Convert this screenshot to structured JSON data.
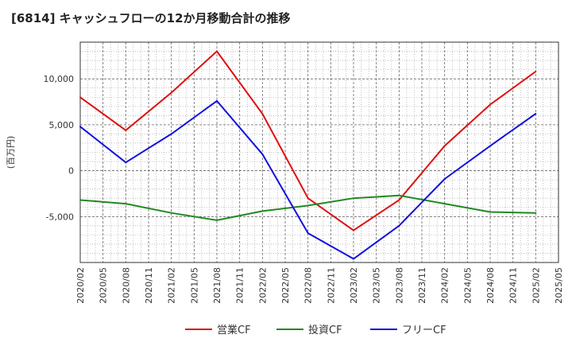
{
  "chart_data": {
    "type": "line",
    "title": "[6814]  キャッシュフローの12か月移動合計の推移",
    "xlabel": "",
    "ylabel": "(百万円)",
    "ylim": [
      -10000,
      14000
    ],
    "yticks": [
      10000,
      5000,
      0,
      -5000
    ],
    "ytick_labels": [
      "10,000",
      "5,000",
      "0",
      "-5,000"
    ],
    "xtick_labels": [
      "2020/02",
      "2020/05",
      "2020/08",
      "2020/11",
      "2021/02",
      "2021/05",
      "2021/08",
      "2021/11",
      "2022/02",
      "2022/05",
      "2022/08",
      "2022/11",
      "2023/02",
      "2023/05",
      "2023/08",
      "2023/11",
      "2024/02",
      "2024/05",
      "2024/08",
      "2024/11",
      "2025/02",
      "2025/05"
    ],
    "grid": true,
    "legend_position": "bottom",
    "series": [
      {
        "name": "営業CF",
        "color": "#dd1111",
        "x": [
          "2020/02",
          "2020/08",
          "2021/02",
          "2021/08",
          "2022/02",
          "2022/08",
          "2023/02",
          "2023/08",
          "2024/02",
          "2024/08",
          "2025/02"
        ],
        "values": [
          8000,
          4400,
          8500,
          13000,
          6200,
          -3000,
          -6500,
          -3200,
          2700,
          7200,
          10800
        ]
      },
      {
        "name": "投資CF",
        "color": "#228822",
        "x": [
          "2020/02",
          "2020/08",
          "2021/02",
          "2021/08",
          "2022/02",
          "2022/08",
          "2023/02",
          "2023/08",
          "2024/02",
          "2024/08",
          "2025/02"
        ],
        "values": [
          -3200,
          -3600,
          -4600,
          -5400,
          -4400,
          -3800,
          -3000,
          -2700,
          -3600,
          -4500,
          -4600
        ]
      },
      {
        "name": "フリーCF",
        "color": "#1111dd",
        "x": [
          "2020/02",
          "2020/08",
          "2021/02",
          "2021/08",
          "2022/02",
          "2022/08",
          "2023/02",
          "2023/08",
          "2024/02",
          "2024/08",
          "2025/02"
        ],
        "values": [
          4800,
          900,
          4000,
          7600,
          1800,
          -6800,
          -9600,
          -6000,
          -900,
          2700,
          6200
        ]
      }
    ]
  }
}
